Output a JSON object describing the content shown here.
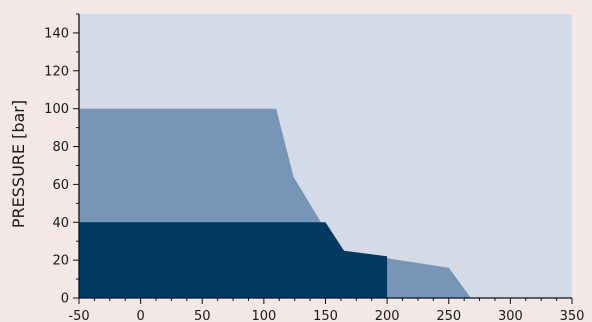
{
  "chart_data": {
    "type": "area",
    "title": "",
    "xlabel": "",
    "ylabel": "PRESSURE [bar]",
    "xlim": [
      -50,
      350
    ],
    "ylim": [
      0,
      150
    ],
    "x_ticks": [
      -50,
      0,
      50,
      100,
      150,
      200,
      250,
      300,
      350
    ],
    "y_ticks": [
      0,
      20,
      40,
      60,
      80,
      100,
      120,
      140
    ],
    "grid": false,
    "legend": "none",
    "colors": {
      "page_background": "#f3e8e6",
      "plot_background": "#d3dbe8",
      "outer_region": "#7796b7",
      "inner_region": "#003a60"
    },
    "regions": [
      {
        "level": "outer",
        "color": "#7796b7",
        "points": [
          [
            -50,
            0
          ],
          [
            -50,
            100
          ],
          [
            110,
            100
          ],
          [
            124,
            64
          ],
          [
            150,
            36
          ],
          [
            165,
            25
          ],
          [
            200,
            21
          ],
          [
            250,
            16
          ],
          [
            268,
            0
          ]
        ]
      },
      {
        "level": "inner",
        "color": "#003a60",
        "points": [
          [
            -50,
            0
          ],
          [
            -50,
            40
          ],
          [
            150,
            40
          ],
          [
            165,
            25
          ],
          [
            200,
            22
          ],
          [
            200,
            0
          ]
        ]
      }
    ]
  }
}
